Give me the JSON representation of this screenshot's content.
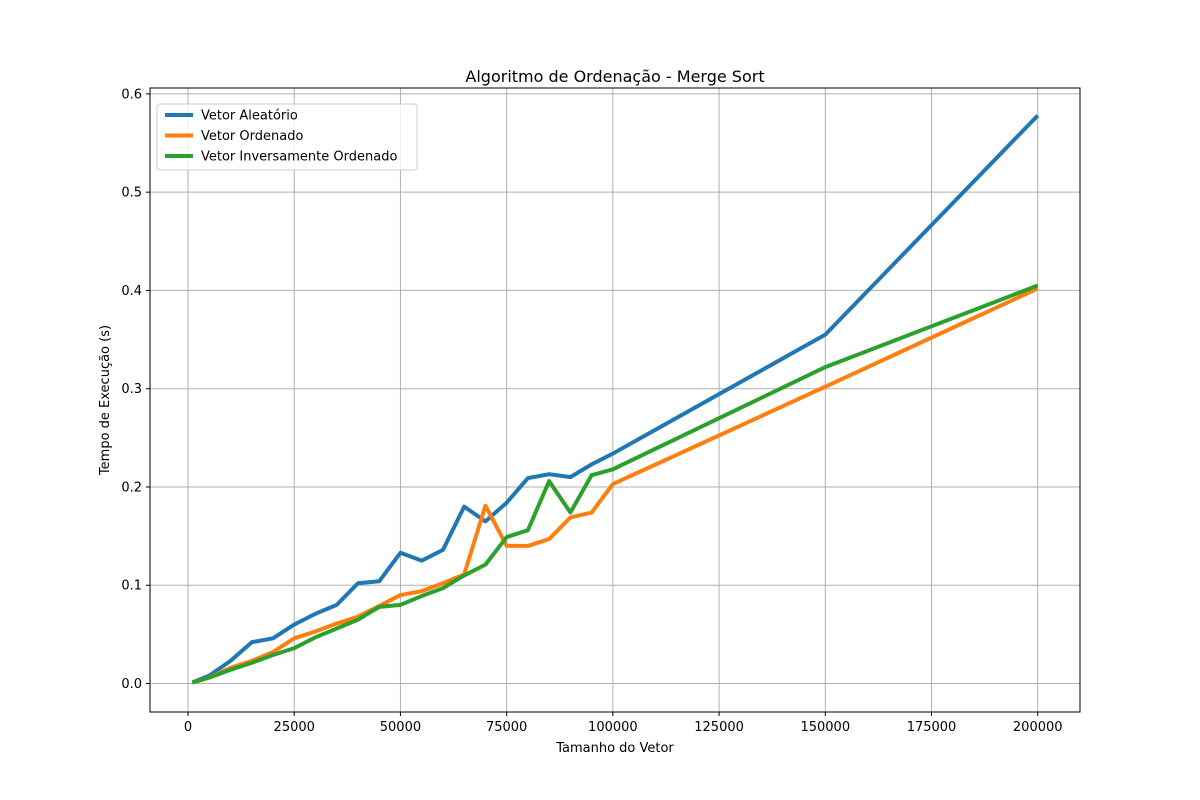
{
  "chart_data": {
    "type": "line",
    "title": "Algoritmo de Ordenação - Merge Sort",
    "xlabel": "Tamanho do Vetor",
    "ylabel": "Tempo de Execução (s)",
    "xlim": [
      -8950,
      209950
    ],
    "ylim": [
      -0.029,
      0.606
    ],
    "xticks": [
      0,
      25000,
      50000,
      75000,
      100000,
      125000,
      150000,
      175000,
      200000
    ],
    "xtick_labels": [
      "0",
      "25000",
      "50000",
      "75000",
      "100000",
      "125000",
      "150000",
      "175000",
      "200000"
    ],
    "yticks": [
      0.0,
      0.1,
      0.2,
      0.3,
      0.4,
      0.5,
      0.6
    ],
    "ytick_labels": [
      "0.0",
      "0.1",
      "0.2",
      "0.3",
      "0.4",
      "0.5",
      "0.6"
    ],
    "grid": true,
    "legend_position": "upper-left",
    "x": [
      1000,
      5000,
      10000,
      15000,
      20000,
      25000,
      30000,
      35000,
      40000,
      45000,
      50000,
      55000,
      60000,
      65000,
      70000,
      75000,
      80000,
      85000,
      90000,
      95000,
      100000,
      150000,
      200000
    ],
    "series": [
      {
        "name": "Vetor Aleatório",
        "color": "#1f77b4",
        "values": [
          0.001,
          0.008,
          0.023,
          0.042,
          0.046,
          0.06,
          0.071,
          0.08,
          0.102,
          0.104,
          0.133,
          0.125,
          0.136,
          0.18,
          0.165,
          0.184,
          0.209,
          0.213,
          0.21,
          0.223,
          0.234,
          0.355,
          0.578
        ]
      },
      {
        "name": "Vetor Ordenado",
        "color": "#ff7f0e",
        "values": [
          0.001,
          0.006,
          0.016,
          0.023,
          0.032,
          0.046,
          0.053,
          0.061,
          0.068,
          0.079,
          0.09,
          0.094,
          0.102,
          0.111,
          0.181,
          0.14,
          0.14,
          0.147,
          0.169,
          0.174,
          0.203,
          0.302,
          0.402
        ]
      },
      {
        "name": "Vetor Inversamente Ordenado",
        "color": "#2ca02c",
        "values": [
          0.001,
          0.006,
          0.014,
          0.021,
          0.029,
          0.036,
          0.047,
          0.056,
          0.065,
          0.078,
          0.08,
          0.089,
          0.097,
          0.11,
          0.121,
          0.149,
          0.156,
          0.206,
          0.174,
          0.212,
          0.218,
          0.322,
          0.405
        ]
      }
    ]
  }
}
